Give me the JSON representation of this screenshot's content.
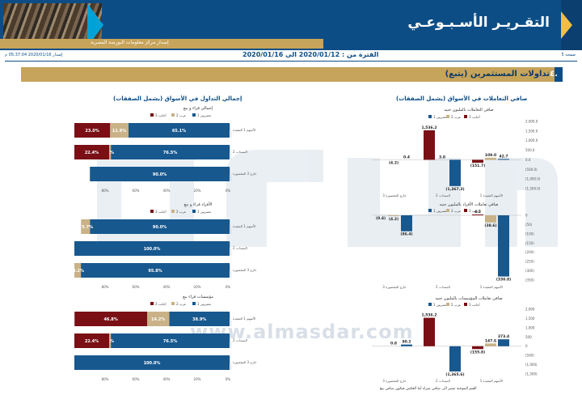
{
  "header": {
    "title": "التقـريـر الأسـبـوعـي",
    "subtitle": "إصدار مركز معلومات البورصة المصرية"
  },
  "meta": {
    "page": "صفحة 5",
    "period": "الفترة من : 2020/01/12 الى 2020/01/16",
    "issued": "إصدار 2020/01/16 05:37:04 م"
  },
  "section": {
    "number": "٤.",
    "title": "تداولات المستثمرين (يتبع)"
  },
  "left_panel": {
    "title": "إجمالي التداول في الأسواق (يشمل الصفقات)"
  },
  "right_panel": {
    "title": "صافي التعاملات في الأسواق (يشمل الصفقات)"
  },
  "legends": {
    "stacked": [
      "مصريين 1",
      "عرب 2",
      "أجانب 3"
    ],
    "net": [
      "مصريين 1",
      "عرب 2",
      "أجانب 3"
    ]
  },
  "watermark": {
    "text": "www.almasdar.com"
  },
  "footnote": "القيم الموجبة تشير الى صافي شراء أما العكس فيكون صافي بيع",
  "colors": {
    "egyptian": "#17588f",
    "arab": "#c9b287",
    "foreign": "#7a0f16",
    "brand": "#0d4d86",
    "gold": "#c7a45b"
  },
  "chart_data": [
    {
      "type": "bar",
      "title": "إجمالي قراء و بيع",
      "categories": [
        "الأسهم 1 المقيدة",
        "السندات 2",
        "خارج 3 المقصورة"
      ],
      "series": [
        {
          "name": "مصريين 1",
          "values": [
            65.1,
            76.5,
            90.0
          ]
        },
        {
          "name": "عرب 2",
          "values": [
            11.9,
            1.1,
            0.0
          ]
        },
        {
          "name": "أجانب 3",
          "values": [
            23.0,
            22.4,
            0.0
          ]
        }
      ],
      "tick_labels": [
        "80%",
        "60%",
        "40%",
        "20%",
        "0%"
      ]
    },
    {
      "type": "bar",
      "title": "الأفراد قراء و بيع",
      "categories": [
        "الأسهم 1 المقيدة",
        "السندات 2",
        "خارج 3 المقصورة"
      ],
      "series": [
        {
          "name": "مصريين 1",
          "values": [
            90.0,
            100.0,
            95.8
          ]
        },
        {
          "name": "عرب 2",
          "values": [
            5.7,
            0.0,
            4.2
          ]
        },
        {
          "name": "أجانب 3",
          "values": [
            0.0,
            0.0,
            0.0
          ]
        }
      ],
      "tick_labels": [
        "80%",
        "60%",
        "40%",
        "20%",
        "0%"
      ]
    },
    {
      "type": "bar",
      "title": "مؤسسات قراء بيع",
      "categories": [
        "الأسهم 1 المقيدة",
        "السندات 2",
        "خارج 3 المقصورة"
      ],
      "series": [
        {
          "name": "مصريين 1",
          "values": [
            38.9,
            76.5,
            100.0
          ]
        },
        {
          "name": "عرب 2",
          "values": [
            14.2,
            1.1,
            0.0
          ]
        },
        {
          "name": "أجانب 3",
          "values": [
            46.8,
            22.4,
            0.0
          ]
        }
      ],
      "tick_labels": [
        "80%",
        "60%",
        "40%",
        "20%",
        "0%"
      ]
    },
    {
      "type": "bar",
      "title": "صافي التعاملات بالمليون جنيه",
      "categories": [
        "الأسهم المقيدة 1",
        "السندات 2",
        "خارج المقصورة 3"
      ],
      "series": [
        {
          "name": "مصريين 1",
          "values": [
            42.7,
            -1367.3,
            0.4
          ]
        },
        {
          "name": "عرب 2",
          "values": [
            109.0,
            3.8,
            -4.2
          ]
        },
        {
          "name": "أجانب 3",
          "values": [
            -151.7,
            1536.2,
            0.0
          ]
        }
      ],
      "ylim": [
        -1500,
        2000
      ],
      "tick_labels": [
        "2,000.0",
        "1,500.0",
        "1,000.0",
        "500.0",
        "0.0",
        "(500.0)",
        "(1,000.0)",
        "(1,500.0)"
      ]
    },
    {
      "type": "bar",
      "title": "صافي تعاملات الأفراد بالمليون جنيه",
      "categories": [
        "الأسهم المقيدة 1",
        "السندات 2",
        "خارج المقصورة 3"
      ],
      "series": [
        {
          "name": "مصريين 1",
          "values": [
            -330.8,
            0.0,
            -86.4
          ]
        },
        {
          "name": "عرب 2",
          "values": [
            -38.6,
            0.0,
            -4.2
          ]
        },
        {
          "name": "أجانب 3",
          "values": [
            4.2,
            0.0,
            -0.4
          ]
        }
      ],
      "value_labels": [
        [
          "(330.8)",
          "(38.6)",
          "4.2"
        ],
        [
          "",
          "",
          ""
        ],
        [
          "(86.4)",
          "(4.2)",
          "(0.4)"
        ]
      ],
      "ylim": [
        -350,
        0
      ],
      "tick_labels": [
        "0",
        "(50)",
        "(100)",
        "(150)",
        "(200)",
        "(250)",
        "(300)",
        "(350)"
      ]
    },
    {
      "type": "bar",
      "title": "صافي تعاملات المؤسسات بالمليون جنيه",
      "categories": [
        "الأسهم المقيدة 1",
        "السندات 2",
        "خارج المقصورة 3"
      ],
      "series": [
        {
          "name": "مصريين 1",
          "values": [
            373.4,
            -1365.6,
            90.2
          ]
        },
        {
          "name": "عرب 2",
          "values": [
            147.6,
            0.0,
            0.8
          ]
        },
        {
          "name": "أجانب 3",
          "values": [
            -155.8,
            1536.2,
            0.0
          ]
        }
      ],
      "ylim": [
        -1500,
        2000
      ],
      "tick_labels": [
        "2,000",
        "1,500",
        "1,000",
        "500",
        "0",
        "(500)",
        "(1,000)",
        "(1,500)"
      ]
    }
  ]
}
